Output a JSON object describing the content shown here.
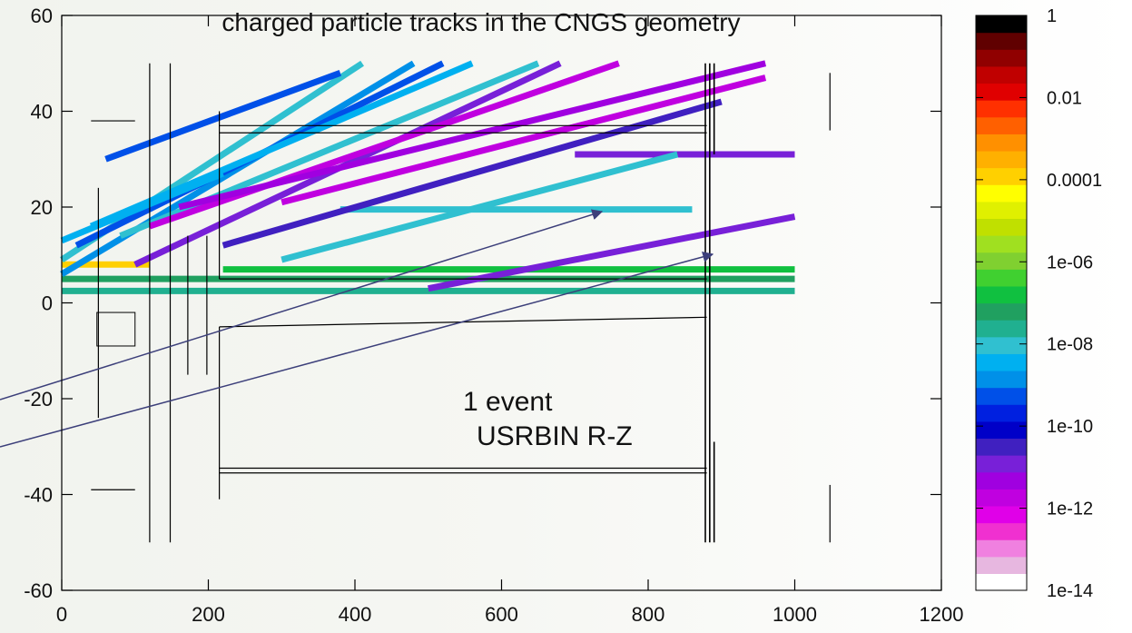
{
  "chart_data": {
    "type": "heatmap",
    "title": "charged particle tracks in the CNGS geometry",
    "xlabel": "",
    "ylabel": "",
    "xlim": [
      0,
      1200
    ],
    "ylim": [
      -60,
      60
    ],
    "x_ticks": [
      "0",
      "200",
      "400",
      "600",
      "800",
      "1000",
      "1200"
    ],
    "y_ticks": [
      "-60",
      "-40",
      "-20",
      "0",
      "20",
      "40",
      "60"
    ],
    "colorbar": {
      "scale": "log",
      "range": [
        1e-14,
        1
      ],
      "labels": [
        "1e-14",
        "1e-12",
        "1e-10",
        "1e-08",
        "1e-06",
        "0.0001",
        "0.01",
        "1"
      ],
      "colors": [
        "#ffffff",
        "#e7b7e0",
        "#f080e0",
        "#f030d0",
        "#e000e8",
        "#c000e0",
        "#a000e0",
        "#7820d8",
        "#4020c0",
        "#0000c8",
        "#0020e0",
        "#0050e8",
        "#0090e8",
        "#00b0f0",
        "#30c0d0",
        "#20b090",
        "#20a060",
        "#10c040",
        "#40d030",
        "#80d030",
        "#a0e020",
        "#c0e000",
        "#e0f000",
        "#ffff00",
        "#ffd000",
        "#ffb000",
        "#ff9000",
        "#ff6000",
        "#ff3000",
        "#e00000",
        "#c00000",
        "#900000",
        "#600000",
        "#000000"
      ]
    },
    "tracks": [
      {
        "from": [
          0,
          2.5
        ],
        "to": [
          1000,
          2.5
        ],
        "color": "#20b090"
      },
      {
        "from": [
          0,
          5
        ],
        "to": [
          1000,
          5
        ],
        "color": "#20a060"
      },
      {
        "from": [
          220,
          7
        ],
        "to": [
          1000,
          7
        ],
        "color": "#10c040"
      },
      {
        "from": [
          0,
          8
        ],
        "to": [
          120,
          8
        ],
        "color": "#ffd000"
      },
      {
        "from": [
          380,
          19.5
        ],
        "to": [
          860,
          19.5
        ],
        "color": "#30c0d0"
      },
      {
        "from": [
          700,
          31
        ],
        "to": [
          1000,
          31
        ],
        "color": "#7820d8"
      },
      {
        "from": [
          0,
          6
        ],
        "to": [
          480,
          50
        ],
        "color": "#0090e8"
      },
      {
        "from": [
          0,
          9
        ],
        "to": [
          410,
          50
        ],
        "color": "#30c0d0"
      },
      {
        "from": [
          20,
          12
        ],
        "to": [
          520,
          50
        ],
        "color": "#0050e8"
      },
      {
        "from": [
          40,
          16
        ],
        "to": [
          560,
          50
        ],
        "color": "#00b0f0"
      },
      {
        "from": [
          80,
          14
        ],
        "to": [
          650,
          50
        ],
        "color": "#30c0d0"
      },
      {
        "from": [
          100,
          8
        ],
        "to": [
          680,
          50
        ],
        "color": "#7820d8"
      },
      {
        "from": [
          120,
          16
        ],
        "to": [
          760,
          50
        ],
        "color": "#c000e0"
      },
      {
        "from": [
          160,
          20
        ],
        "to": [
          960,
          50
        ],
        "color": "#a000e0"
      },
      {
        "from": [
          220,
          12
        ],
        "to": [
          900,
          42
        ],
        "color": "#4020c0"
      },
      {
        "from": [
          300,
          9
        ],
        "to": [
          840,
          31
        ],
        "color": "#30c0d0"
      },
      {
        "from": [
          500,
          3
        ],
        "to": [
          1000,
          18
        ],
        "color": "#7820d8"
      },
      {
        "from": [
          300,
          21
        ],
        "to": [
          960,
          47
        ],
        "color": "#c000e0"
      },
      {
        "from": [
          60,
          30
        ],
        "to": [
          380,
          48
        ],
        "color": "#0050e8"
      },
      {
        "from": [
          0,
          13
        ],
        "to": [
          220,
          27
        ],
        "color": "#00b0f0"
      }
    ],
    "annotation": {
      "line1": "1 event",
      "line2": "USRBIN  R-Z"
    }
  }
}
